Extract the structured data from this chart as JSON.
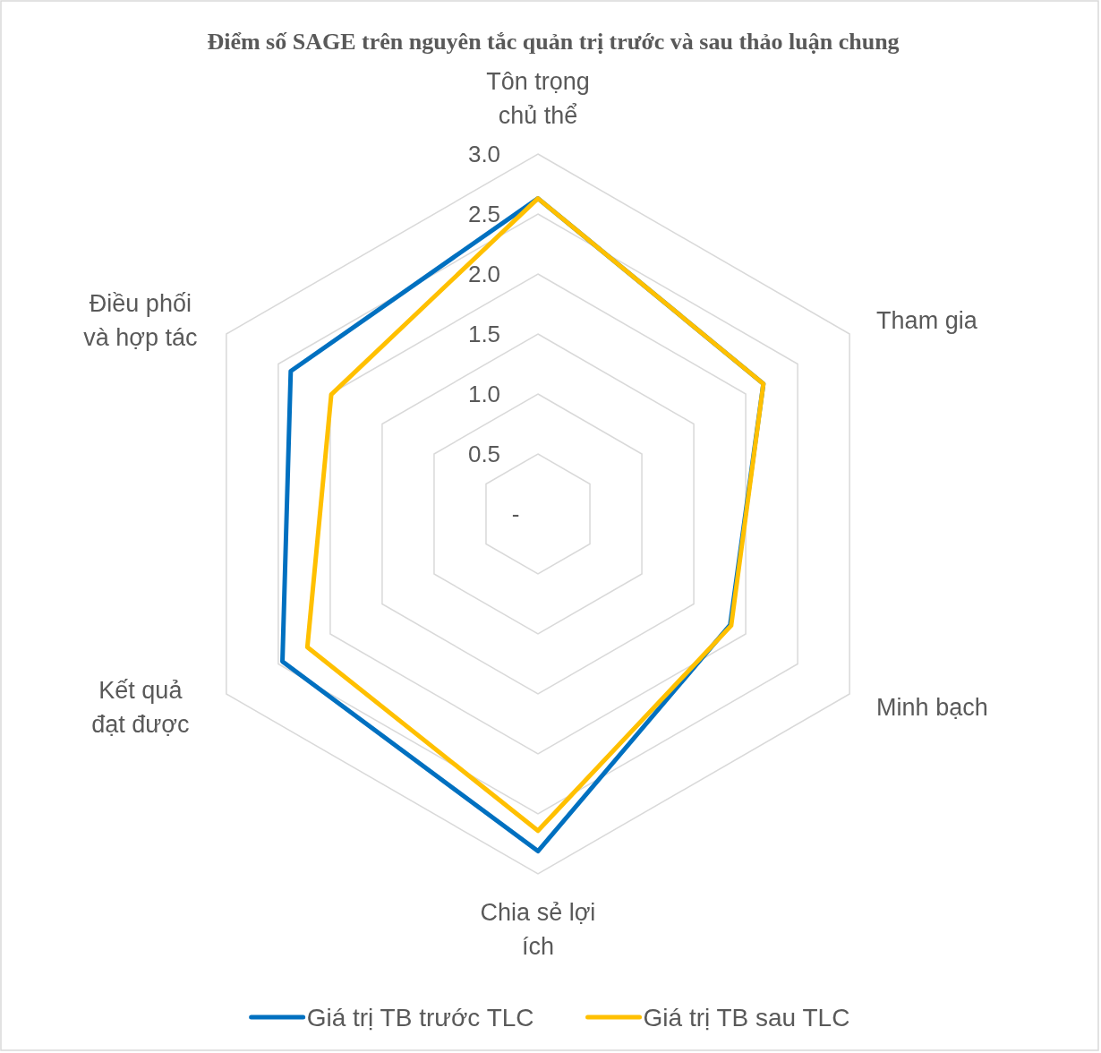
{
  "chart_data": {
    "type": "radar",
    "title": "Điểm số SAGE trên nguyên tắc quản trị trước và sau thảo luận chung",
    "categories": [
      "Tôn trọng chủ thể",
      "Tham gia",
      "Minh bạch",
      "Chia sẻ lợi ích",
      "Kết quả đạt được",
      "Điều phối và hợp tác"
    ],
    "series": [
      {
        "name": "Giá trị TB trước TLC",
        "color": "#0070c0",
        "values": [
          2.63,
          2.17,
          1.85,
          2.81,
          2.46,
          2.38
        ]
      },
      {
        "name": "Giá trị TB sau TLC",
        "color": "#ffc000",
        "values": [
          2.63,
          2.17,
          1.86,
          2.64,
          2.22,
          1.99
        ]
      }
    ],
    "ylim": [
      0,
      3
    ],
    "yticks": [
      {
        "value": 0,
        "label": "-"
      },
      0.5,
      {
        "value": 1,
        "label": "1.0"
      },
      1.5,
      {
        "value": 2,
        "label": "2.0"
      },
      2.5,
      {
        "value": 3,
        "label": "3.0"
      }
    ],
    "grid": true,
    "legend": "bottom",
    "marker": "none",
    "line_style": "solid"
  }
}
